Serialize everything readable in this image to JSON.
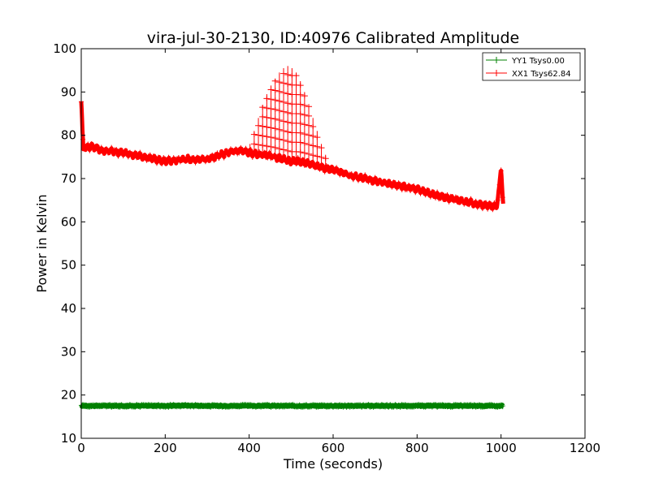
{
  "chart_data": {
    "type": "line",
    "title": "vira-jul-30-2130, ID:40976 Calibrated Amplitude",
    "xlabel": "Time (seconds)",
    "ylabel": "Power in Kelvin",
    "xlim": [
      0,
      1200
    ],
    "ylim": [
      10,
      100
    ],
    "xticks": [
      0,
      200,
      400,
      600,
      800,
      1000,
      1200
    ],
    "yticks": [
      10,
      20,
      30,
      40,
      50,
      60,
      70,
      80,
      90,
      100
    ],
    "grid": false,
    "legend_position": "top-right",
    "series": [
      {
        "name": "YY1 Tsys0.00",
        "color": "#008000",
        "marker": "+",
        "x": [
          0,
          50,
          100,
          150,
          200,
          250,
          300,
          350,
          400,
          450,
          500,
          550,
          600,
          650,
          700,
          750,
          800,
          850,
          900,
          950,
          1005
        ],
        "y": [
          17.5,
          17.5,
          17.5,
          17.5,
          17.5,
          17.6,
          17.5,
          17.5,
          17.5,
          17.5,
          17.5,
          17.5,
          17.5,
          17.5,
          17.5,
          17.5,
          17.5,
          17.5,
          17.5,
          17.5,
          17.5
        ]
      },
      {
        "name": "XX1 Tsys62.84",
        "color": "#ff0000",
        "marker": "+",
        "x": [
          0,
          5,
          25,
          50,
          100,
          150,
          200,
          250,
          300,
          350,
          380,
          400,
          430,
          460,
          480,
          500,
          520,
          540,
          560,
          580,
          600,
          650,
          700,
          750,
          800,
          850,
          900,
          950,
          990,
          1000,
          1005
        ],
        "y": [
          88,
          77,
          77.5,
          76.5,
          76,
          75,
          74,
          74.5,
          74.5,
          76,
          76.5,
          76,
          75.5,
          75,
          74.5,
          74,
          74,
          73.5,
          73,
          72.5,
          72,
          70.5,
          69.5,
          68.5,
          67.5,
          66,
          65,
          64,
          63.5,
          72,
          64
        ]
      }
    ],
    "peak_spikes": {
      "series": "XX1 Tsys62.84",
      "x": [
        402,
        412,
        422,
        432,
        442,
        452,
        462,
        472,
        482,
        492,
        502,
        512,
        522,
        532,
        542,
        552,
        562,
        572,
        582,
        592
      ],
      "y": [
        78,
        81,
        84,
        87,
        89.5,
        91.5,
        93,
        94.5,
        95.5,
        96,
        95.5,
        94.5,
        92.5,
        90,
        87,
        84,
        81,
        78,
        75.5,
        73
      ]
    }
  }
}
